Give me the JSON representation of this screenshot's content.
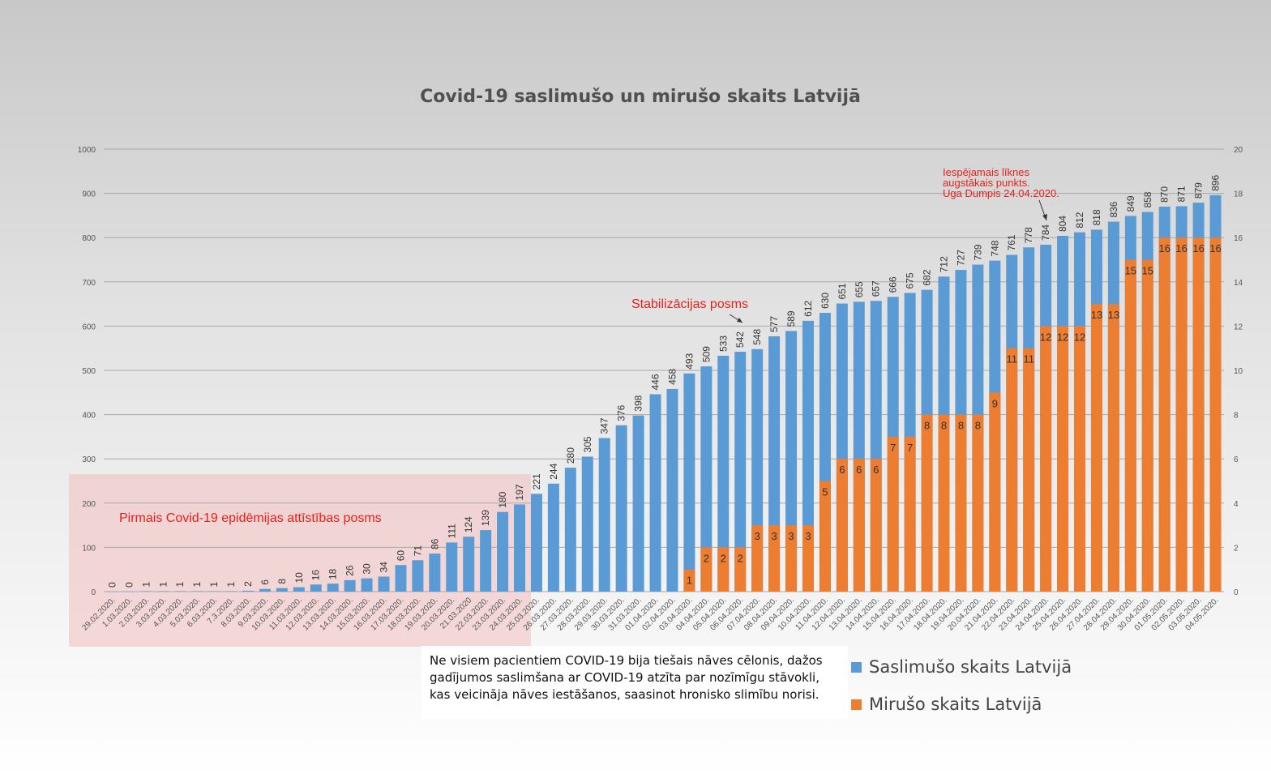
{
  "chart_data": {
    "type": "bar",
    "title": "Covid-19 saslimušo un mirušo skaits Latvijā",
    "y_left_lim": [
      0,
      1000
    ],
    "y_left_ticks": [
      0,
      100,
      200,
      300,
      400,
      500,
      600,
      700,
      800,
      900,
      1000
    ],
    "y_right_lim": [
      0,
      20
    ],
    "y_right_ticks": [
      0,
      2,
      4,
      6,
      8,
      10,
      12,
      14,
      16,
      18,
      20
    ],
    "grid": true,
    "legend_position": "bottom-right",
    "categories": [
      "29.02.2020.",
      "1.03.2020.",
      "2.03.2020.",
      "3.03.2020.",
      "4.03.2020.",
      "5.03.2020.",
      "6.03.2020.",
      "7.3.2020.",
      "8.03.2020.",
      "9.03.2020.",
      "10.03.2020.",
      "11.03.2020.",
      "12.03.2020.",
      "13.03.2020.",
      "14.03.2020.",
      "15.03.2020.",
      "16.03.2020.",
      "17.03.2020.",
      "18.03.2020.",
      "19.03.2020.",
      "20.03.2020.",
      "21.03.2020",
      "22.03.2020.",
      "23.03.2020.",
      "24.03.2020.",
      "25.03.2020.",
      "26.03.2020.",
      "27.03.2020.",
      "28.03.2020.",
      "29.03.2020.",
      "30.03.2020.",
      "31.03.2020.",
      "01.04.2020.",
      "02.04.2020.",
      "03.04.2020.",
      "04.04.2020.",
      "05.04.2020.",
      "06.04.2020.",
      "07.04.2020.",
      "08.04.2020.",
      "09.04.2020.",
      "10.04.2020.",
      "11.04.2020.",
      "12.04.2020.",
      "13.04.2020.",
      "14.04.2020.",
      "15.04.2020.",
      "16.04.2020.",
      "17.04.2020.",
      "18.04.2020.",
      "19.04.2020.",
      "20.04.2020.",
      "21.04.2020.",
      "22.04.2020.",
      "23.04.2020.",
      "24.04.2020.",
      "25.04.2020.",
      "26.04.2020.",
      "27.04.2020.",
      "28.04.2020.",
      "29.04.2020.",
      "30.04.2020.",
      "01.05.2020.",
      "02.05.2020.",
      "03.05.2020.",
      "04.05.2020."
    ],
    "series": [
      {
        "name": "Saslimušo skaits Latvijā",
        "axis": "left",
        "color": "#5b9bd5",
        "values": [
          0,
          0,
          1,
          1,
          1,
          1,
          1,
          1,
          2,
          6,
          8,
          10,
          16,
          18,
          26,
          30,
          34,
          60,
          71,
          86,
          111,
          124,
          139,
          180,
          197,
          221,
          244,
          280,
          305,
          347,
          376,
          398,
          446,
          458,
          493,
          509,
          533,
          542,
          548,
          577,
          589,
          612,
          630,
          651,
          655,
          657,
          666,
          675,
          682,
          712,
          727,
          739,
          748,
          761,
          778,
          784,
          804,
          812,
          818,
          836,
          849,
          858,
          870,
          871,
          879,
          896
        ]
      },
      {
        "name": "Mirušo skaits Latvijā",
        "axis": "right",
        "color": "#ed7d31",
        "values": [
          null,
          null,
          null,
          null,
          null,
          null,
          null,
          null,
          null,
          null,
          null,
          null,
          null,
          null,
          null,
          null,
          null,
          null,
          null,
          null,
          null,
          null,
          null,
          null,
          null,
          null,
          null,
          null,
          null,
          null,
          null,
          null,
          null,
          null,
          1,
          2,
          2,
          2,
          3,
          3,
          3,
          3,
          5,
          6,
          6,
          6,
          7,
          7,
          8,
          8,
          8,
          8,
          9,
          11,
          11,
          12,
          12,
          12,
          13,
          13,
          15,
          15,
          16,
          16,
          16,
          16
        ]
      }
    ],
    "annotations": {
      "phase1": "Pirmais Covid-19 epidēmijas attīstības posms",
      "stabilization": "Stabilizācijas posms",
      "peak_lines": [
        "Iespējamais līknes",
        "augstākais punkts.",
        "Uga Dumpis 24.04.2020."
      ]
    }
  },
  "note_text": "Ne visiem pacientiem COVID-19 bija tiešais nāves cēlonis, dažos gadījumos saslimšana ar COVID-19 atzīta par nozīmīgu stāvokli, kas veicināja nāves iestāšanos, saasinot hronisko slimību norisi.",
  "legend": {
    "cases_label": "Saslimušo skaits Latvijā",
    "deaths_label": "Mirušo skaits Latvijā"
  }
}
